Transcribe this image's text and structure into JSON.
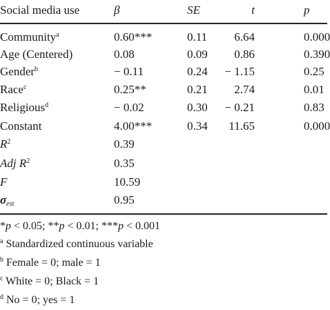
{
  "header": {
    "col_label": "Social media use",
    "col_beta": "β",
    "col_se": "SE",
    "col_t": "t",
    "col_p": "p"
  },
  "rows": [
    {
      "label": "Community",
      "sup": "a",
      "beta": "0.60***",
      "se": "0.11",
      "t": "6.64",
      "p": "0.000"
    },
    {
      "label": "Age (Centered)",
      "sup": "",
      "beta": "0.08",
      "se": "0.09",
      "t": "0.86",
      "p": "0.390"
    },
    {
      "label": "Gender",
      "sup": "b",
      "beta": "− 0.11",
      "se": "0.24",
      "t": "− 1.15",
      "p": "0.25"
    },
    {
      "label": "Race",
      "sup": "c",
      "beta": "0.25**",
      "se": "0.21",
      "t": "2.74",
      "p": "0.01"
    },
    {
      "label": "Religious",
      "sup": "d",
      "beta": "− 0.02",
      "se": "0.30",
      "t": "− 0.21",
      "p": "0.83"
    },
    {
      "label": "Constant",
      "sup": "",
      "beta": "4.00***",
      "se": "0.34",
      "t": "11.65",
      "p": "0.000"
    }
  ],
  "stats": {
    "r2_label": "R",
    "r2_sup": "2",
    "r2_value": "0.39",
    "adj_prefix": "Adj R",
    "adj_sup": "2",
    "adj_value": "0.35",
    "f_label": "F",
    "f_value": "10.59",
    "sigma_label": "σ",
    "sigma_sub": "est",
    "sigma_value": "0.95"
  },
  "notes": {
    "sig": "*p < 0.05; **p < 0.01; ***p < 0.001",
    "sig_parts": [
      "*",
      "p",
      " < 0.05; **",
      "p",
      " < 0.01; ***",
      "p",
      " < 0.001"
    ],
    "a_mark": "a",
    "a_text": " Standardized continuous variable",
    "b_mark": "b",
    "b_text": " Female = 0; male = 1",
    "c_mark": "c",
    "c_text": " White = 0; Black = 1",
    "d_mark": "d",
    "d_text": " No = 0; yes = 1"
  }
}
